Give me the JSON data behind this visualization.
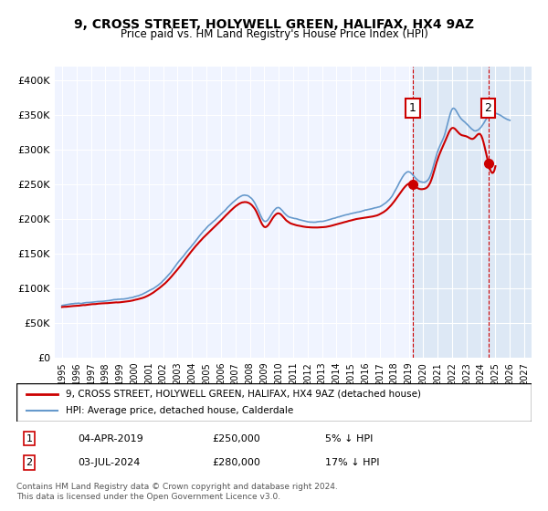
{
  "title": "9, CROSS STREET, HOLYWELL GREEN, HALIFAX, HX4 9AZ",
  "subtitle": "Price paid vs. HM Land Registry's House Price Index (HPI)",
  "legend_line1": "9, CROSS STREET, HOLYWELL GREEN, HALIFAX, HX4 9AZ (detached house)",
  "legend_line2": "HPI: Average price, detached house, Calderdale",
  "sale1_date": "04-APR-2019",
  "sale1_price": "£250,000",
  "sale1_info": "5% ↓ HPI",
  "sale2_date": "03-JUL-2024",
  "sale2_price": "£280,000",
  "sale2_info": "17% ↓ HPI",
  "footnote1": "Contains HM Land Registry data © Crown copyright and database right 2024.",
  "footnote2": "This data is licensed under the Open Government Licence v3.0.",
  "red_color": "#cc0000",
  "blue_color": "#6699cc",
  "background_plot": "#f0f4ff",
  "background_shaded": "#dde8f5",
  "grid_color": "#ffffff",
  "xlim": [
    1994.5,
    2027.5
  ],
  "ylim": [
    0,
    420000
  ],
  "sale1_year": 2019.27,
  "sale2_year": 2024.5,
  "yticks": [
    0,
    50000,
    100000,
    150000,
    200000,
    250000,
    300000,
    350000,
    400000
  ],
  "ytick_labels": [
    "£0",
    "£50K",
    "£100K",
    "£150K",
    "£200K",
    "£250K",
    "£300K",
    "£350K",
    "£400K"
  ],
  "xticks": [
    1995,
    1996,
    1997,
    1998,
    1999,
    2000,
    2001,
    2002,
    2003,
    2004,
    2005,
    2006,
    2007,
    2008,
    2009,
    2010,
    2011,
    2012,
    2013,
    2014,
    2015,
    2016,
    2017,
    2018,
    2019,
    2020,
    2021,
    2022,
    2023,
    2024,
    2025,
    2026,
    2027
  ]
}
